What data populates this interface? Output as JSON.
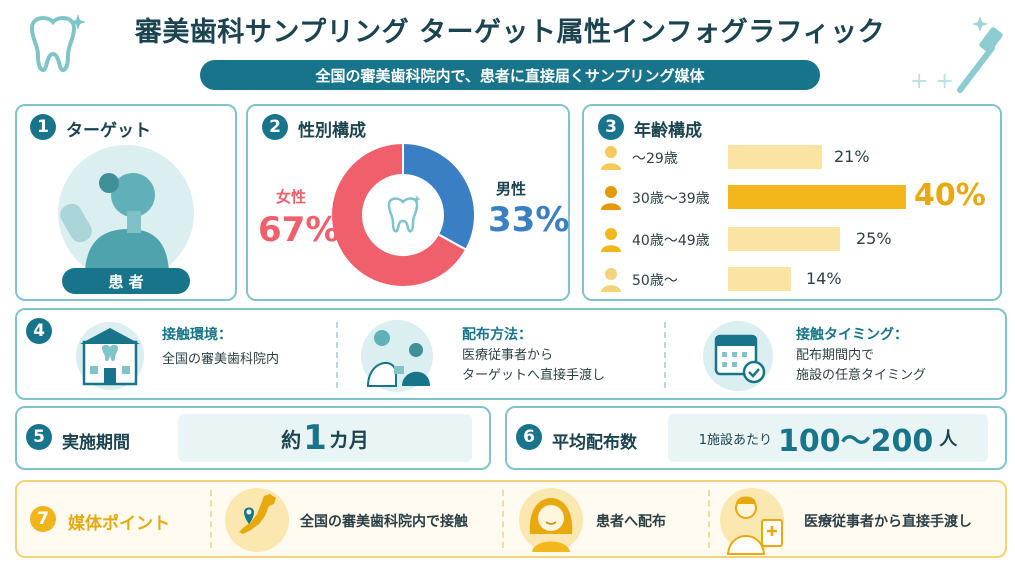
{
  "header": {
    "title": "審美歯科サンプリング ターゲット属性インフォグラフィック",
    "subtitle": "全国の審美歯科院内で、患者に直接届くサンプリング媒体"
  },
  "sections": {
    "target": {
      "num": "1",
      "title": "ターゲット",
      "label": "患 者"
    },
    "gender": {
      "num": "2",
      "title": "性別構成",
      "female_label": "女性",
      "female_value": "67%",
      "male_label": "男性",
      "male_value": "33%"
    },
    "age": {
      "num": "3",
      "title": "年齢構成",
      "rows": [
        {
          "label": "〜29歳",
          "value": "21%"
        },
        {
          "label": "30歳〜39歳",
          "value": "40%"
        },
        {
          "label": "40歳〜49歳",
          "value": "25%"
        },
        {
          "label": "50歳〜",
          "value": "14%"
        }
      ]
    },
    "contact": {
      "num": "4",
      "environment": {
        "head": "接触環境：",
        "text": "全国の審美歯科院内"
      },
      "method": {
        "head": "配布方法：",
        "line1": "医療従事者から",
        "line2": "ターゲットへ直接手渡し"
      },
      "timing": {
        "head": "接触タイミング：",
        "line1": "配布期間内で",
        "line2": "施設の任意タイミング"
      }
    },
    "period": {
      "num": "5",
      "title": "実施期間",
      "prefix": "約",
      "value": "1",
      "unit": "カ月"
    },
    "distribution": {
      "num": "6",
      "title": "平均配布数",
      "prefix": "1施設あたり",
      "value": "100〜200",
      "unit": "人"
    },
    "points": {
      "num": "7",
      "title": "媒体ポイント",
      "items": [
        "全国の審美歯科院内で接触",
        "患者へ配布",
        "医療従事者から直接手渡し"
      ]
    }
  },
  "chart_data": {
    "type": "pie",
    "categories": [
      "女性",
      "男性"
    ],
    "values": [
      67,
      33
    ]
  },
  "age_chart_data": {
    "type": "bar",
    "categories": [
      "〜29歳",
      "30歳〜39歳",
      "40歳〜49歳",
      "50歳〜"
    ],
    "values": [
      21,
      40,
      25,
      14
    ]
  },
  "colors": {
    "teal": "#17748a",
    "female": "#f0606c",
    "male": "#3a7fc4",
    "age_bar": "#fbe3a4",
    "age_bar_highlight": "#f3b61b",
    "point_accent": "#f0b51c"
  }
}
